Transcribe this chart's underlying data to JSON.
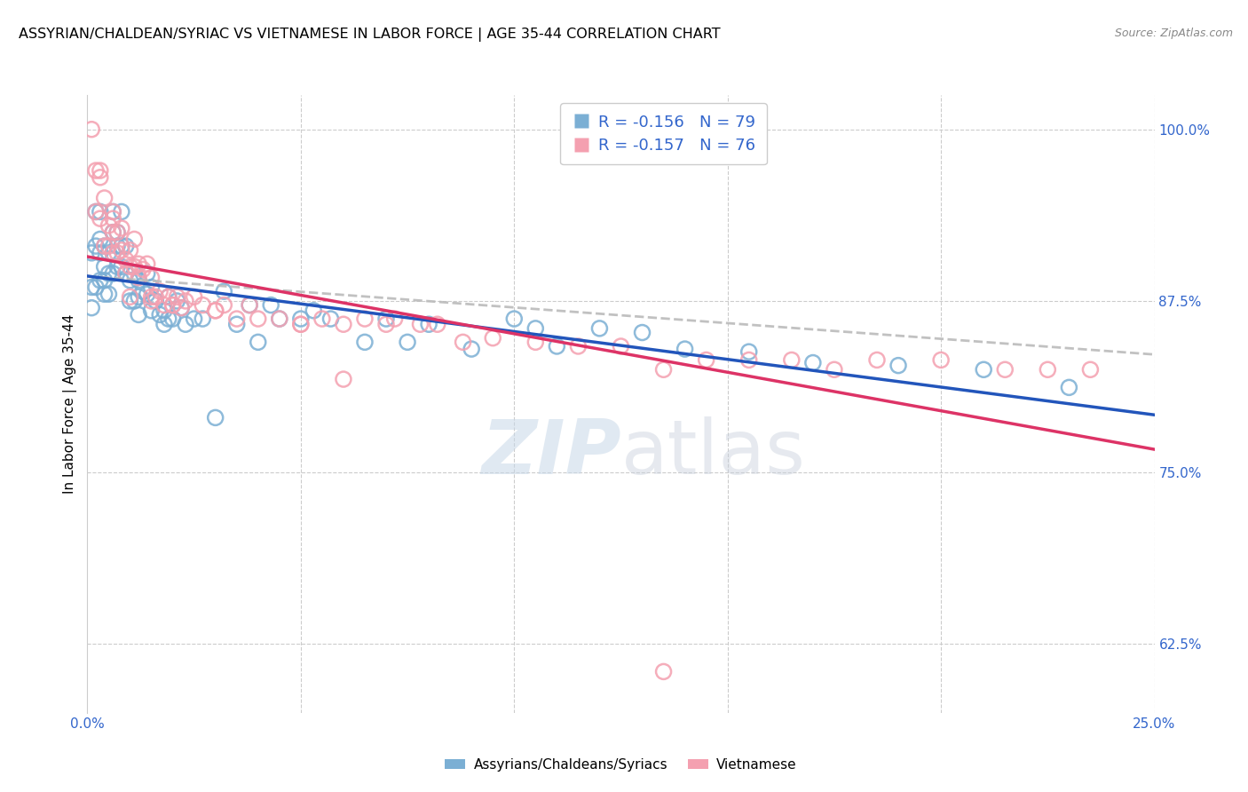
{
  "title": "ASSYRIAN/CHALDEAN/SYRIAC VS VIETNAMESE IN LABOR FORCE | AGE 35-44 CORRELATION CHART",
  "source": "Source: ZipAtlas.com",
  "ylabel": "In Labor Force | Age 35-44",
  "xlim": [
    0.0,
    0.25
  ],
  "ylim": [
    0.575,
    1.025
  ],
  "yticks_right": [
    0.625,
    0.75,
    0.875,
    1.0
  ],
  "ytick_right_labels": [
    "62.5%",
    "75.0%",
    "87.5%",
    "100.0%"
  ],
  "xticks": [
    0.0,
    0.05,
    0.1,
    0.15,
    0.2,
    0.25
  ],
  "xticklabels": [
    "0.0%",
    "",
    "",
    "",
    "",
    "25.0%"
  ],
  "legend_blue_r": "-0.156",
  "legend_blue_n": "79",
  "legend_pink_r": "-0.157",
  "legend_pink_n": "76",
  "legend_blue_label": "Assyrians/Chaldeans/Syriacs",
  "legend_pink_label": "Vietnamese",
  "blue_color": "#7bafd4",
  "pink_color": "#f4a0b0",
  "trend_blue_color": "#2255bb",
  "trend_pink_color": "#dd3366",
  "trend_dash_color": "#bbbbbb",
  "watermark_zip": "ZIP",
  "watermark_atlas": "atlas",
  "blue_x": [
    0.001,
    0.001,
    0.001,
    0.002,
    0.002,
    0.002,
    0.003,
    0.003,
    0.003,
    0.003,
    0.004,
    0.004,
    0.004,
    0.004,
    0.005,
    0.005,
    0.005,
    0.006,
    0.006,
    0.006,
    0.006,
    0.007,
    0.007,
    0.007,
    0.008,
    0.008,
    0.008,
    0.009,
    0.009,
    0.01,
    0.01,
    0.011,
    0.011,
    0.012,
    0.012,
    0.012,
    0.013,
    0.014,
    0.014,
    0.015,
    0.015,
    0.016,
    0.017,
    0.018,
    0.018,
    0.019,
    0.019,
    0.02,
    0.021,
    0.022,
    0.023,
    0.025,
    0.027,
    0.03,
    0.032,
    0.035,
    0.038,
    0.04,
    0.043,
    0.045,
    0.05,
    0.053,
    0.057,
    0.065,
    0.07,
    0.075,
    0.08,
    0.09,
    0.1,
    0.105,
    0.11,
    0.12,
    0.13,
    0.14,
    0.155,
    0.17,
    0.19,
    0.21,
    0.23
  ],
  "blue_y": [
    0.91,
    0.885,
    0.87,
    0.94,
    0.915,
    0.885,
    0.94,
    0.92,
    0.91,
    0.89,
    0.915,
    0.9,
    0.89,
    0.88,
    0.91,
    0.895,
    0.88,
    0.94,
    0.925,
    0.91,
    0.895,
    0.925,
    0.915,
    0.9,
    0.94,
    0.915,
    0.9,
    0.915,
    0.895,
    0.89,
    0.875,
    0.895,
    0.875,
    0.89,
    0.878,
    0.865,
    0.882,
    0.895,
    0.88,
    0.885,
    0.868,
    0.875,
    0.865,
    0.868,
    0.858,
    0.878,
    0.862,
    0.862,
    0.875,
    0.87,
    0.858,
    0.862,
    0.862,
    0.79,
    0.882,
    0.858,
    0.872,
    0.845,
    0.872,
    0.862,
    0.862,
    0.868,
    0.862,
    0.845,
    0.862,
    0.845,
    0.858,
    0.84,
    0.862,
    0.855,
    0.842,
    0.855,
    0.852,
    0.84,
    0.838,
    0.83,
    0.828,
    0.825,
    0.812
  ],
  "pink_x": [
    0.002,
    0.002,
    0.003,
    0.003,
    0.004,
    0.004,
    0.005,
    0.005,
    0.006,
    0.006,
    0.006,
    0.007,
    0.007,
    0.008,
    0.008,
    0.009,
    0.009,
    0.01,
    0.01,
    0.011,
    0.011,
    0.012,
    0.012,
    0.013,
    0.014,
    0.015,
    0.015,
    0.016,
    0.017,
    0.018,
    0.019,
    0.02,
    0.021,
    0.022,
    0.023,
    0.025,
    0.027,
    0.03,
    0.032,
    0.035,
    0.038,
    0.04,
    0.045,
    0.05,
    0.055,
    0.06,
    0.065,
    0.07,
    0.072,
    0.078,
    0.082,
    0.088,
    0.095,
    0.105,
    0.115,
    0.125,
    0.135,
    0.145,
    0.155,
    0.165,
    0.175,
    0.185,
    0.2,
    0.215,
    0.225,
    0.235,
    0.001,
    0.003,
    0.006,
    0.01,
    0.015,
    0.02,
    0.03,
    0.05,
    0.06,
    0.135
  ],
  "pink_y": [
    0.97,
    0.94,
    0.97,
    0.935,
    0.95,
    0.915,
    0.93,
    0.915,
    0.94,
    0.925,
    0.91,
    0.925,
    0.91,
    0.928,
    0.912,
    0.905,
    0.895,
    0.912,
    0.9,
    0.92,
    0.9,
    0.902,
    0.892,
    0.898,
    0.902,
    0.892,
    0.878,
    0.878,
    0.882,
    0.872,
    0.878,
    0.872,
    0.878,
    0.87,
    0.875,
    0.878,
    0.872,
    0.868,
    0.872,
    0.862,
    0.872,
    0.862,
    0.862,
    0.858,
    0.862,
    0.858,
    0.862,
    0.858,
    0.862,
    0.858,
    0.858,
    0.845,
    0.848,
    0.845,
    0.842,
    0.842,
    0.825,
    0.832,
    0.832,
    0.832,
    0.825,
    0.832,
    0.832,
    0.825,
    0.825,
    0.825,
    1.0,
    0.965,
    0.935,
    0.878,
    0.875,
    0.872,
    0.868,
    0.858,
    0.818,
    0.605
  ]
}
